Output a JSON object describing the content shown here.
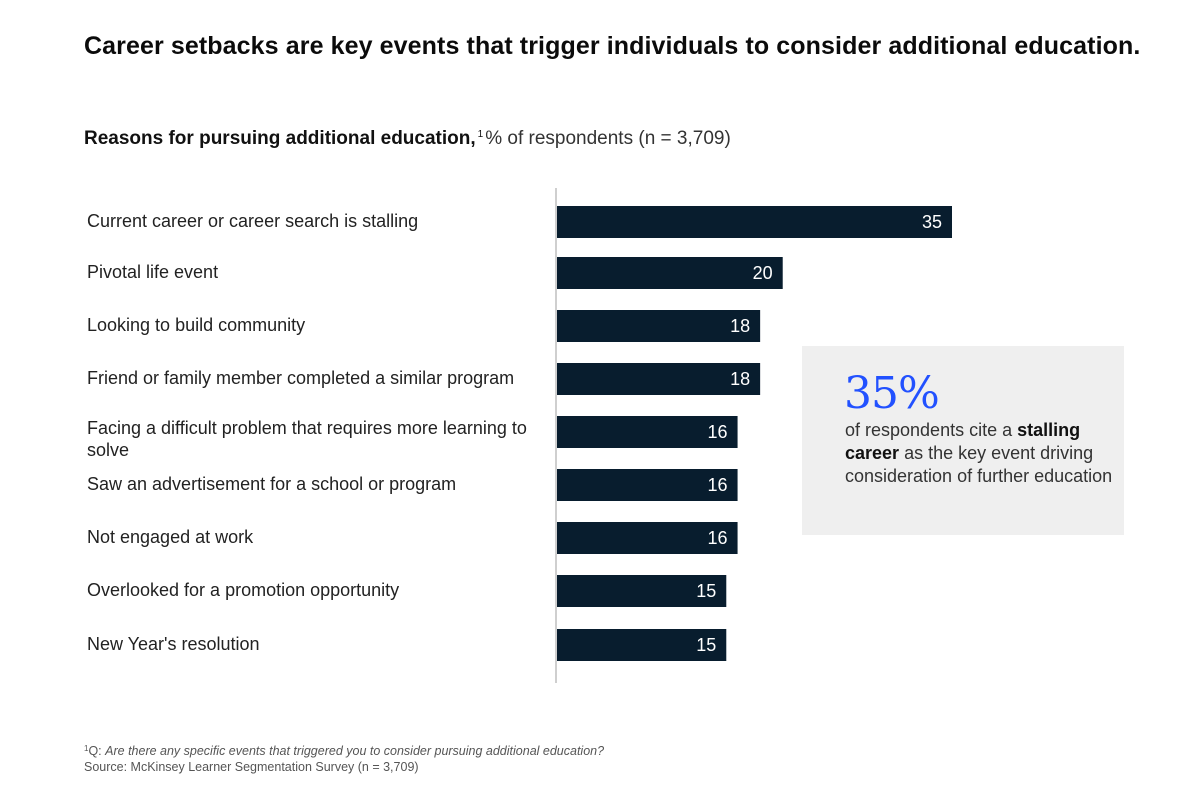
{
  "header": {
    "title": "Career setbacks are key events that trigger individuals to consider additional education.",
    "subtitle_bold": "Reasons for pursuing additional education,",
    "subtitle_footnote_mark": "1",
    "subtitle_rest": "% of respondents (n = 3,709)"
  },
  "colors": {
    "bar": "#081d2e",
    "bar_label": "#ffffff",
    "axis": "#bfbfbf",
    "accent": "#2251ff",
    "callout_bg": "#efefef"
  },
  "chart_data": {
    "type": "bar",
    "orientation": "horizontal",
    "title": "Reasons for pursuing additional education, % of respondents (n = 3,709)",
    "xlabel": "",
    "ylabel": "",
    "xlim": [
      0,
      35
    ],
    "grid": false,
    "legend": "none",
    "categories": [
      "Current career or career search is stalling",
      "Pivotal life event",
      "Looking to build community",
      "Friend or family member completed a similar program",
      "Facing a difficult problem that requires more learning to solve",
      "Saw an advertisement for a school or program",
      "Not engaged at work",
      "Overlooked for a promotion opportunity",
      "New Year's resolution"
    ],
    "values": [
      35,
      20,
      18,
      18,
      16,
      16,
      16,
      15,
      15
    ]
  },
  "callout": {
    "stat": "35%",
    "text_before": "of respondents cite a",
    "text_bold": "stalling career",
    "text_after": "as the key event driving consideration of further education"
  },
  "footnote": {
    "mark": "1",
    "question_prefix": "Q:",
    "question": "Are there any specific events that triggered you to consider pursuing additional education?",
    "source": "Source: McKinsey Learner Segmentation Survey (n = 3,709)"
  }
}
